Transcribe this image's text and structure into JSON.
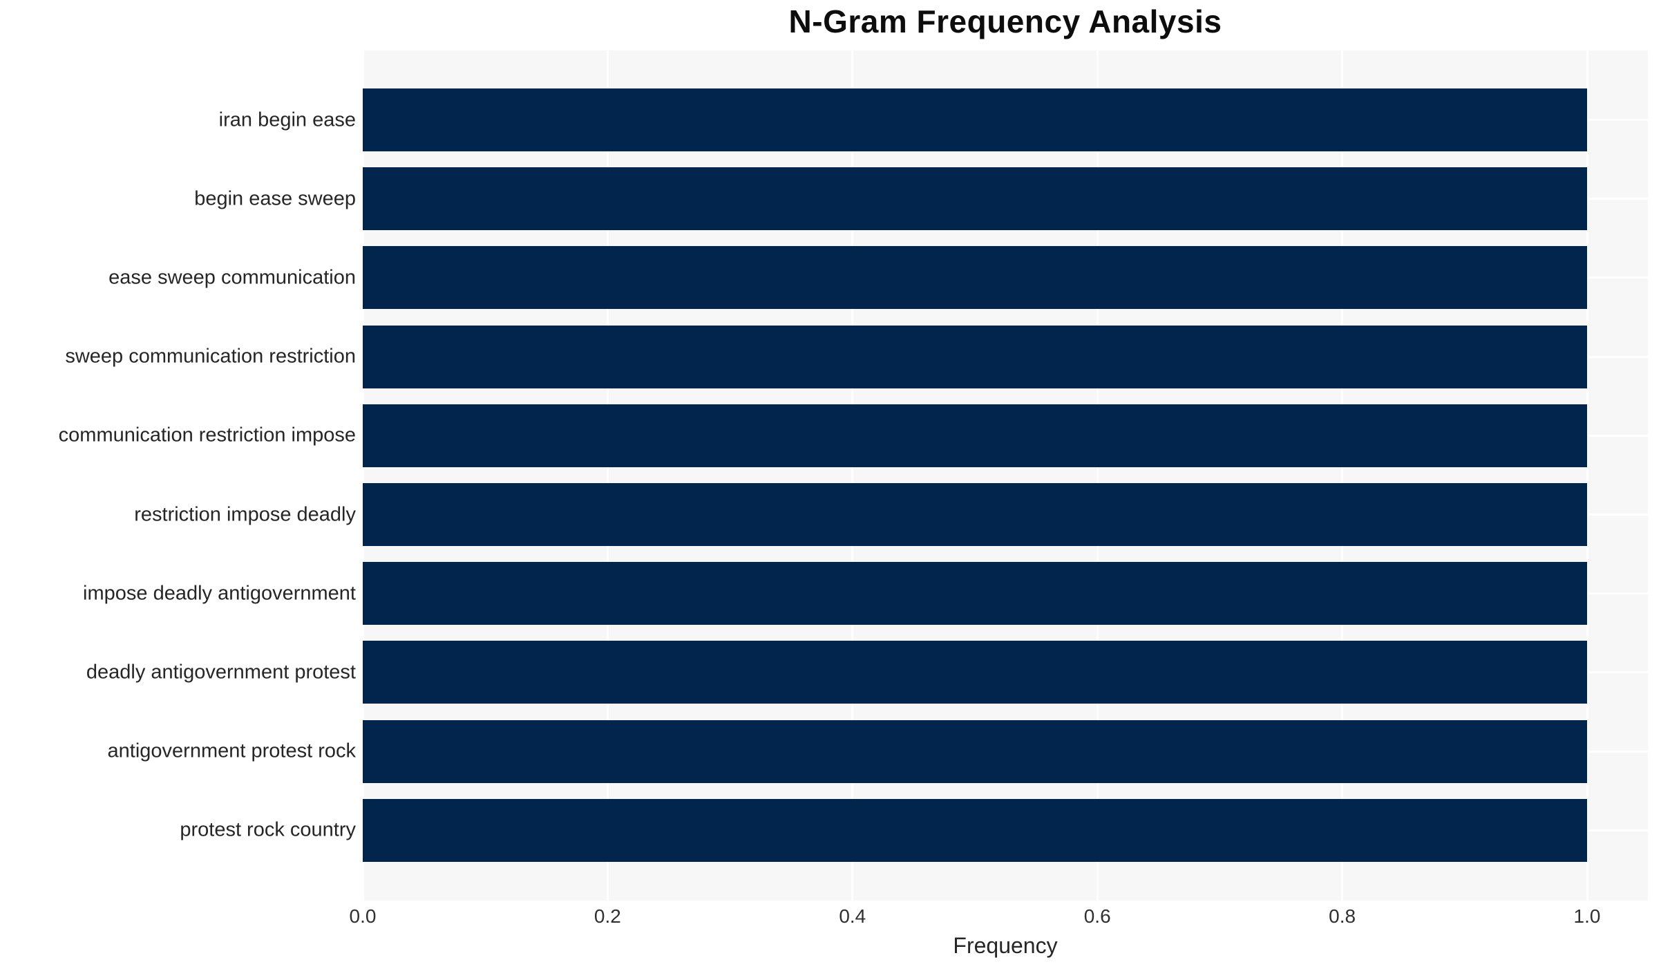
{
  "chart_data": {
    "type": "bar",
    "orientation": "horizontal",
    "title": "N-Gram Frequency Analysis",
    "xlabel": "Frequency",
    "ylabel": "",
    "categories": [
      "iran begin ease",
      "begin ease sweep",
      "ease sweep communication",
      "sweep communication restriction",
      "communication restriction impose",
      "restriction impose deadly",
      "impose deadly antigovernment",
      "deadly antigovernment protest",
      "antigovernment protest rock",
      "protest rock country"
    ],
    "values": [
      1.0,
      1.0,
      1.0,
      1.0,
      1.0,
      1.0,
      1.0,
      1.0,
      1.0,
      1.0
    ],
    "xticks": [
      0.0,
      0.2,
      0.4,
      0.6,
      0.8,
      1.0
    ],
    "xtick_labels": [
      "0.0",
      "0.2",
      "0.4",
      "0.6",
      "0.8",
      "1.0"
    ],
    "xlim": [
      0,
      1.05
    ],
    "grid": true,
    "legend": false,
    "colors": {
      "bar": "#02254e",
      "plot_background": "#f7f7f7",
      "gridline": "#ffffff",
      "tick_text": "#303030",
      "label_text": "#262626",
      "title_text": "#0d0d0d"
    }
  }
}
